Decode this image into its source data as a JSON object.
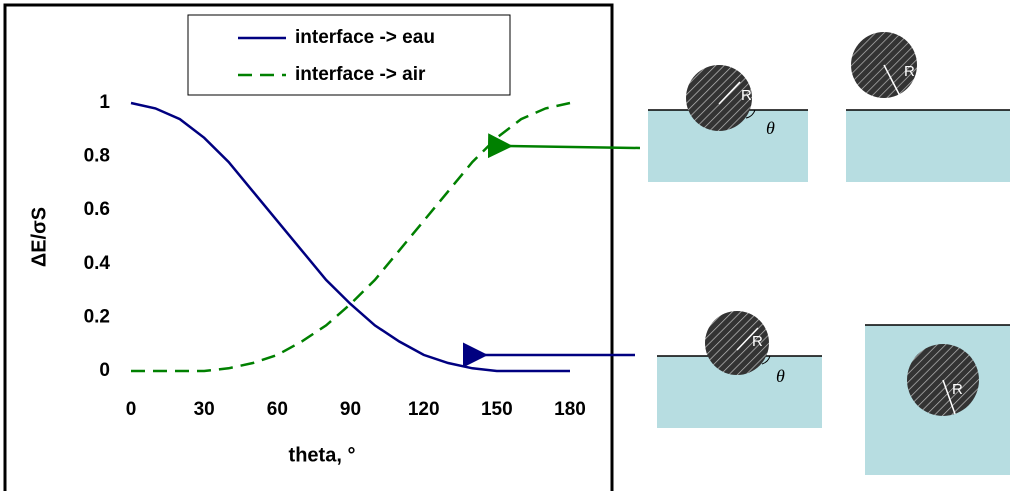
{
  "chart_data": {
    "type": "line",
    "x": [
      0,
      10,
      20,
      30,
      40,
      50,
      60,
      70,
      80,
      90,
      100,
      110,
      120,
      130,
      140,
      150,
      160,
      170,
      180
    ],
    "series": [
      {
        "name": "interface -> eau",
        "color": "#000080",
        "dash": "solid",
        "values": [
          1,
          0.98,
          0.94,
          0.87,
          0.78,
          0.67,
          0.56,
          0.45,
          0.34,
          0.25,
          0.17,
          0.11,
          0.06,
          0.03,
          0.01,
          0,
          0,
          0,
          0
        ]
      },
      {
        "name": "interface -> air",
        "color": "#008000",
        "dash": "dashed",
        "values": [
          0,
          0,
          0,
          0,
          0.01,
          0.03,
          0.06,
          0.11,
          0.17,
          0.25,
          0.34,
          0.45,
          0.56,
          0.67,
          0.78,
          0.87,
          0.94,
          0.98,
          1
        ]
      }
    ],
    "x_label": "theta, °",
    "y_label": "ΔE/σS",
    "xlim": [
      0,
      180
    ],
    "xticks": [
      0,
      30,
      60,
      90,
      120,
      150,
      180
    ],
    "ylim": [
      0,
      1
    ],
    "yticks": [
      0,
      0.2,
      0.4,
      0.6,
      0.8,
      1
    ],
    "legend": "upper center",
    "grid": false
  },
  "diagrams": [
    {
      "radius_label": "R",
      "angle_label": "θ"
    },
    {
      "radius_label": "R"
    },
    {
      "radius_label": "R",
      "angle_label": "θ"
    },
    {
      "radius_label": "R"
    }
  ]
}
